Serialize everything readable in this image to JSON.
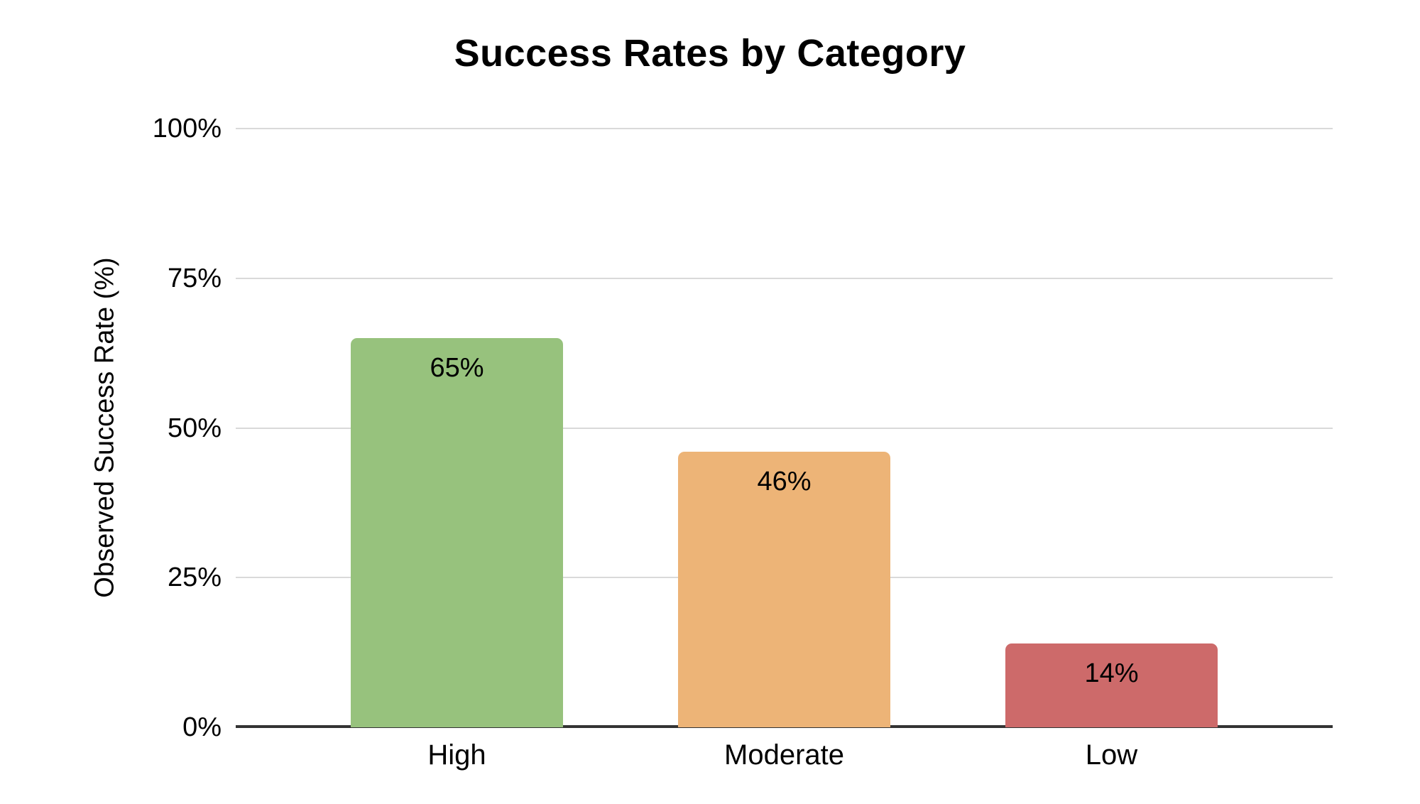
{
  "chart_data": {
    "type": "bar",
    "title": "Success Rates by Category",
    "categories": [
      "High",
      "Moderate",
      "Low"
    ],
    "values": [
      65,
      46,
      14
    ],
    "value_labels": [
      "65%",
      "46%",
      "14%"
    ],
    "bar_colors": [
      "#97C27D",
      "#EDB477",
      "#CD6A6A"
    ],
    "xlabel": "",
    "ylabel": "Observed Success Rate (%)",
    "ylim": [
      0,
      100
    ],
    "yticks": [
      0,
      25,
      50,
      75,
      100
    ],
    "ytick_labels": [
      "0%",
      "25%",
      "50%",
      "75%",
      "100%"
    ],
    "grid": true,
    "legend": false
  },
  "colors": {
    "background": "#FFFFFF",
    "gridline": "#D9D9D9",
    "axis_line": "#333333",
    "text": "#000000"
  }
}
